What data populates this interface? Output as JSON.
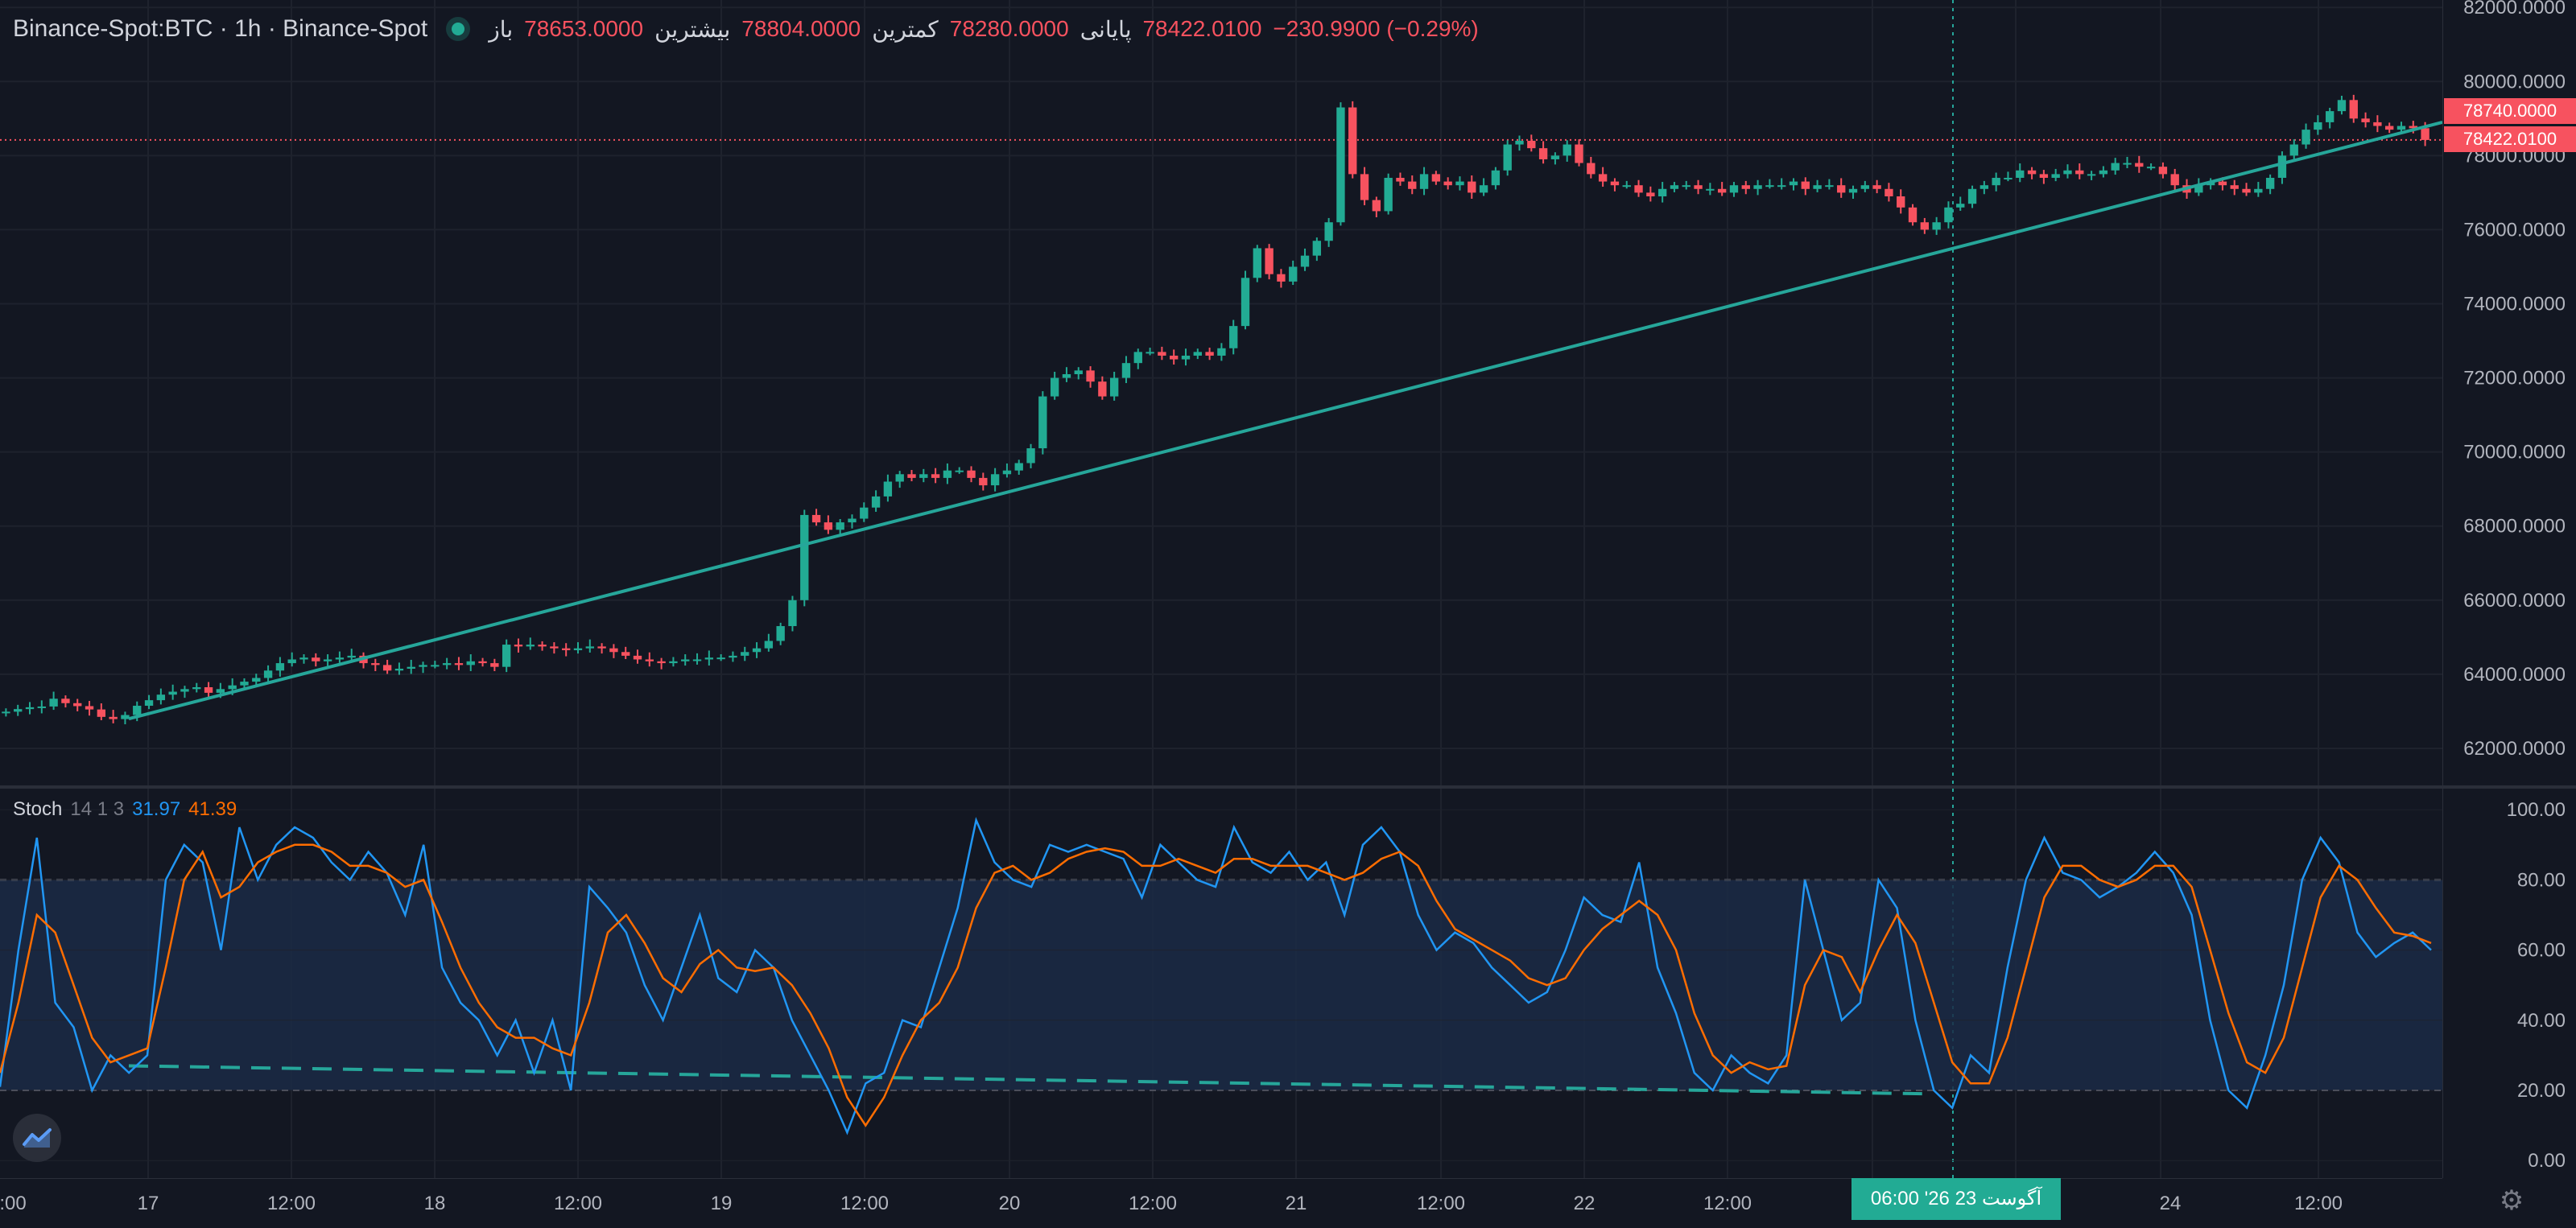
{
  "legend": {
    "symbol": "Binance-Spot:BTC · 1h · Binance-Spot",
    "open_label": "باز",
    "open_value": "78653.0000",
    "high_label": "بیشترین",
    "high_value": "78804.0000",
    "low_label": "کمترین",
    "low_value": "78280.0000",
    "close_label": "پایانی",
    "close_value": "78422.0100",
    "change": "−230.9900 (−0.29%)"
  },
  "price_axis": {
    "labels": [
      "82000.0000",
      "80000.0000",
      "78000.0000",
      "76000.0000",
      "74000.0000",
      "72000.0000",
      "70000.0000",
      "68000.0000",
      "66000.0000",
      "64000.0000",
      "62000.0000"
    ],
    "tags": [
      "78740.0000",
      "78422.0100"
    ]
  },
  "oscillator": {
    "name": "Stoch",
    "params": "14 1 3",
    "k_value": "31.97",
    "d_value": "41.39",
    "axis_labels": [
      "100.00",
      "80.00",
      "60.00",
      "40.00",
      "20.00",
      "0.00"
    ]
  },
  "time_axis": {
    "labels": [
      ":00",
      "17",
      "12:00",
      "18",
      "12:00",
      "19",
      "12:00",
      "20",
      "12:00",
      "21",
      "12:00",
      "22",
      "12:00",
      "24",
      "12:00"
    ],
    "crosshair_label": "06:00   '26 23 آگوست"
  },
  "colors": {
    "up": "#22ab94",
    "down": "#f7525f",
    "background": "#131722",
    "grid": "#1e222d",
    "trendline": "#26a69a",
    "stoch_k": "#2196f3",
    "stoch_d": "#ff6d00",
    "band_fill": "#1b2a45"
  },
  "chart_data": {
    "type": "candlestick",
    "series": [
      {
        "name": "BTC",
        "close": [
          62990,
          63060,
          63110,
          63130,
          63340,
          63220,
          63140,
          63050,
          62850,
          62790,
          62900,
          63150,
          63300,
          63450,
          63530,
          63600,
          63650,
          63500,
          63600,
          63700,
          63800,
          63900,
          64100,
          64300,
          64400,
          64450,
          64350,
          64400,
          64450,
          64500,
          64300,
          64250,
          64100,
          64150,
          64200,
          64250,
          64250,
          64300,
          64250,
          64350,
          64300,
          64200,
          64800,
          64750,
          64800,
          64750,
          64700,
          64650,
          64700,
          64750,
          64700,
          64600,
          64500,
          64400,
          64350,
          64300,
          64350,
          64400,
          64400,
          64450,
          64450,
          64500,
          64600,
          64700,
          64900,
          65300,
          66000,
          68300,
          68100,
          67900,
          68100,
          68200,
          68500,
          68800,
          69200,
          69400,
          69300,
          69400,
          69300,
          69500,
          69500,
          69300,
          69100,
          69400,
          69500,
          69700,
          70100,
          71500,
          72000,
          72100,
          72200,
          71900,
          71500,
          72000,
          72400,
          72700,
          72700,
          72600,
          72500,
          72600,
          72700,
          72600,
          72800,
          73400,
          74700,
          75500,
          74800,
          74600,
          75000,
          75300,
          75700,
          76200,
          79300,
          77500,
          76800,
          76500,
          77400,
          77300,
          77100,
          77500,
          77300,
          77200,
          77300,
          77000,
          77200,
          77600,
          78300,
          78400,
          78200,
          77900,
          78000,
          78300,
          77800,
          77500,
          77300,
          77200,
          77200,
          77000,
          76900,
          77100,
          77200,
          77200,
          77100,
          77100,
          77000,
          77200,
          77100,
          77200,
          77200,
          77200,
          77300,
          77100,
          77200,
          77200,
          77000,
          77100,
          77200,
          77100,
          76900,
          76600,
          76200,
          76000,
          76200,
          76600,
          76700,
          77100,
          77200,
          77400,
          77400,
          77600,
          77500,
          77400,
          77500,
          77600,
          77500,
          77500,
          77600,
          77800,
          77800,
          77700,
          77700,
          77500,
          77200,
          77000,
          77200,
          77300,
          77200,
          77100,
          77000,
          77100,
          77400,
          78000,
          78300,
          78700,
          78900,
          79200,
          79500,
          79000,
          78900,
          78800,
          78700,
          78800,
          78740,
          78422
        ]
      }
    ],
    "trendline": {
      "from": [
        "16 Aug 18:00",
        62800
      ],
      "to": [
        "24 Aug 21:00",
        78900
      ]
    },
    "price_range": [
      61000,
      82200
    ],
    "crosshair_x": "23 Aug 06:00",
    "current_price": 78422.01
  },
  "stoch_data": {
    "k": [
      21,
      60,
      92,
      45,
      38,
      20,
      30,
      25,
      30,
      80,
      90,
      85,
      60,
      95,
      80,
      90,
      95,
      92,
      85,
      80,
      88,
      82,
      70,
      90,
      55,
      45,
      40,
      30,
      40,
      25,
      40,
      20,
      78,
      72,
      65,
      50,
      40,
      55,
      70,
      52,
      48,
      60,
      55,
      40,
      30,
      20,
      8,
      22,
      25,
      40,
      38,
      55,
      72,
      97,
      85,
      80,
      78,
      90,
      88,
      90,
      88,
      86,
      75,
      90,
      85,
      80,
      78,
      95,
      85,
      82,
      88,
      80,
      85,
      70,
      90,
      95,
      88,
      70,
      60,
      65,
      62,
      55,
      50,
      45,
      48,
      60,
      75,
      70,
      68,
      85,
      55,
      42,
      25,
      20,
      30,
      25,
      22,
      30,
      80,
      60,
      40,
      45,
      80,
      72,
      40,
      20,
      15,
      30,
      25,
      55,
      80,
      92,
      82,
      80,
      75,
      78,
      82,
      88,
      82,
      70,
      40,
      20,
      15,
      30,
      50,
      80,
      92,
      85,
      65,
      58,
      62,
      65,
      60
    ],
    "d": [
      25,
      45,
      70,
      65,
      50,
      35,
      28,
      30,
      32,
      55,
      80,
      88,
      75,
      78,
      85,
      88,
      90,
      90,
      88,
      84,
      84,
      82,
      78,
      80,
      68,
      55,
      45,
      38,
      35,
      35,
      32,
      30,
      45,
      65,
      70,
      62,
      52,
      48,
      56,
      60,
      55,
      54,
      55,
      50,
      42,
      32,
      18,
      10,
      18,
      30,
      40,
      45,
      55,
      72,
      82,
      84,
      80,
      82,
      86,
      88,
      89,
      88,
      84,
      84,
      86,
      84,
      82,
      86,
      86,
      84,
      84,
      84,
      82,
      80,
      82,
      86,
      88,
      84,
      74,
      66,
      63,
      60,
      57,
      52,
      50,
      52,
      60,
      66,
      70,
      74,
      70,
      60,
      42,
      30,
      25,
      28,
      26,
      27,
      50,
      60,
      58,
      48,
      60,
      70,
      62,
      45,
      28,
      22,
      22,
      35,
      55,
      75,
      84,
      84,
      80,
      78,
      80,
      84,
      84,
      78,
      60,
      42,
      28,
      25,
      35,
      55,
      75,
      84,
      80,
      72,
      65,
      64,
      62
    ],
    "levels": {
      "upper": 80,
      "lower": 20
    },
    "range": [
      -5,
      106
    ]
  }
}
